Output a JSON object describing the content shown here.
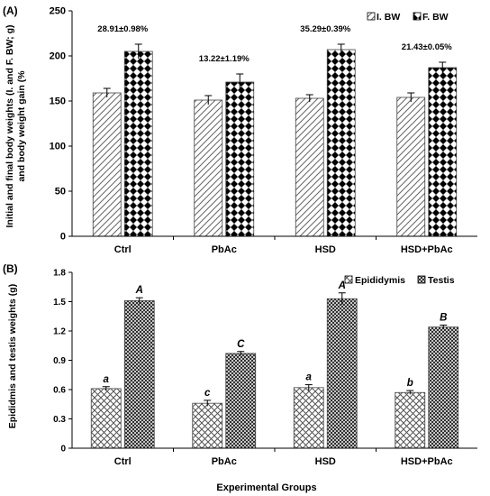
{
  "chart_data": [
    {
      "type": "bar",
      "panel_label": "(A)",
      "categories": [
        "Ctrl",
        "PbAc",
        "HSD",
        "HSD+PbAc"
      ],
      "ylabel_lines": [
        "Initial and final body weights (I. and F. BW; g)",
        "and body weight gain (%"
      ],
      "ylim": [
        0,
        250
      ],
      "yticks": [
        0,
        50,
        100,
        150,
        200,
        250
      ],
      "legend_position": "top-right",
      "series": [
        {
          "name": "I. BW",
          "pattern": "diagonal-hatch",
          "values": [
            159,
            151,
            153,
            154
          ],
          "errors": [
            5,
            5,
            4,
            5
          ]
        },
        {
          "name": "F. BW",
          "pattern": "diamond-checker",
          "values": [
            205,
            171,
            207,
            187
          ],
          "errors": [
            8,
            9,
            6,
            6
          ]
        }
      ],
      "annotations": [
        "28.91±0.98%",
        "13.22±1.19%",
        "35.29±0.39%",
        "21.43±0.05%"
      ]
    },
    {
      "type": "bar",
      "panel_label": "(B)",
      "categories": [
        "Ctrl",
        "PbAc",
        "HSD",
        "HSD+PbAc"
      ],
      "xlabel": "Experimental Groups",
      "ylabel": "Epididmis and testis weights (g)",
      "ylim": [
        0,
        1.8
      ],
      "yticks": [
        "0",
        "0.3",
        "0.6",
        "0.9",
        "1.2",
        "1.5",
        "1.8"
      ],
      "legend_position": "top-right",
      "series": [
        {
          "name": "Epididymis",
          "pattern": "crosshatch",
          "values": [
            0.61,
            0.46,
            0.62,
            0.57
          ],
          "errors": [
            0.02,
            0.03,
            0.03,
            0.02
          ],
          "letters": [
            "a",
            "c",
            "a",
            "b"
          ]
        },
        {
          "name": "Testis",
          "pattern": "dense-crosshatch",
          "values": [
            1.51,
            0.97,
            1.53,
            1.24
          ],
          "errors": [
            0.03,
            0.02,
            0.06,
            0.02
          ],
          "letters": [
            "A",
            "C",
            "A",
            "B"
          ]
        }
      ]
    }
  ]
}
